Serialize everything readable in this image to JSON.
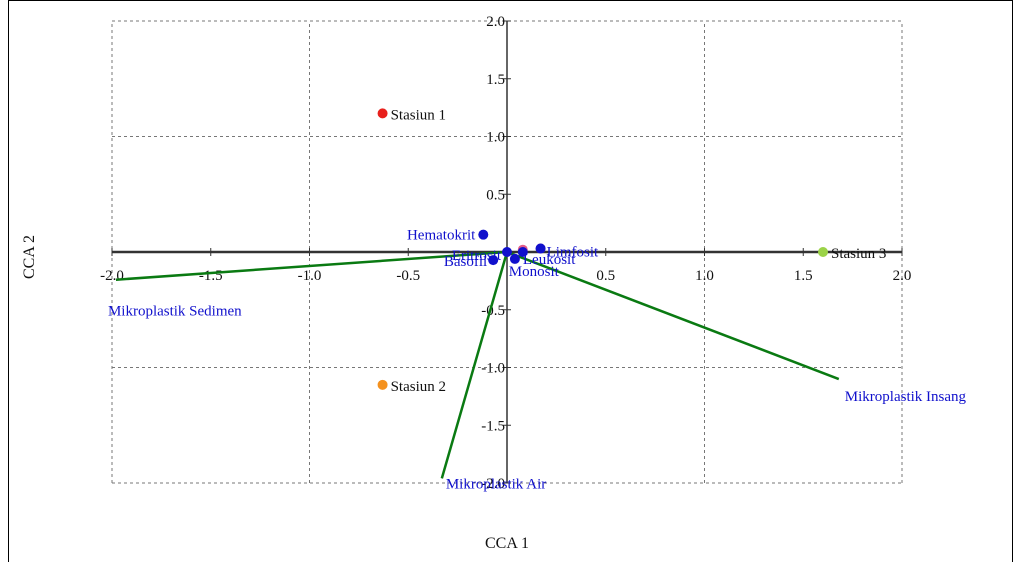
{
  "chart_data": {
    "type": "scatter",
    "title": "",
    "xlabel": "CCA 1",
    "ylabel": "CCA 2",
    "xlim": [
      -2.0,
      2.0
    ],
    "ylim": [
      -2.0,
      2.0
    ],
    "x_ticks": [
      "-2.0",
      "-1.5",
      "-1.0",
      "-0.5",
      "0.5",
      "1.0",
      "1.5",
      "2.0"
    ],
    "x_tick_values": [
      -2.0,
      -1.5,
      -1.0,
      -0.5,
      0.5,
      1.0,
      1.5,
      2.0
    ],
    "y_ticks": [
      "2.0",
      "1.5",
      "1.0",
      "0.5",
      "-0.5",
      "-1.0",
      "-1.5",
      "-2.0"
    ],
    "y_tick_values": [
      2.0,
      1.5,
      1.0,
      0.5,
      -0.5,
      -1.0,
      -1.5,
      -2.0
    ],
    "grid": true,
    "stations": [
      {
        "name": "Stasiun 1",
        "x": -0.63,
        "y": 1.2,
        "color": "#e8201c"
      },
      {
        "name": "Stasiun 2",
        "x": -0.63,
        "y": -1.15,
        "color": "#f4911e"
      },
      {
        "name": "Stasiun 3",
        "x": 1.6,
        "y": 0.0,
        "color": "#9bd348"
      }
    ],
    "variables": [
      {
        "name": "Hematokrit",
        "x": -0.12,
        "y": 0.15,
        "color": "#1010cc"
      },
      {
        "name": "Eritrosit",
        "x": 0.0,
        "y": 0.0,
        "color": "#1010cc"
      },
      {
        "name": "Basofil",
        "x": -0.07,
        "y": -0.07,
        "color": "#1010cc"
      },
      {
        "name": "Leukosit",
        "x": 0.04,
        "y": -0.06,
        "color": "#1010cc"
      },
      {
        "name": "Monosit",
        "x": 0.08,
        "y": 0.0,
        "color": "#1010cc"
      },
      {
        "name": "Limfosit",
        "x": 0.17,
        "y": 0.03,
        "color": "#1010cc"
      }
    ],
    "extra_points": [
      {
        "x": 0.08,
        "y": 0.02,
        "color": "#e35d8a"
      },
      {
        "x": 0.17,
        "y": 0.03,
        "color": "#8a3ab0"
      }
    ],
    "environment_vectors": [
      {
        "name": "Mikroplastik Sedimen",
        "x": -1.98,
        "y": -0.24,
        "color": "#0a7a12"
      },
      {
        "name": "Mikroplastik Air",
        "x": -0.33,
        "y": -1.96,
        "color": "#0a7a12"
      },
      {
        "name": "Mikroplastik Insang",
        "x": 1.68,
        "y": -1.1,
        "color": "#0a7a12"
      }
    ],
    "colors": {
      "axis": "#333333",
      "grid": "#777777",
      "vector": "#0a7a12",
      "variable_label": "#1010cc",
      "station_label": "#111111"
    }
  }
}
